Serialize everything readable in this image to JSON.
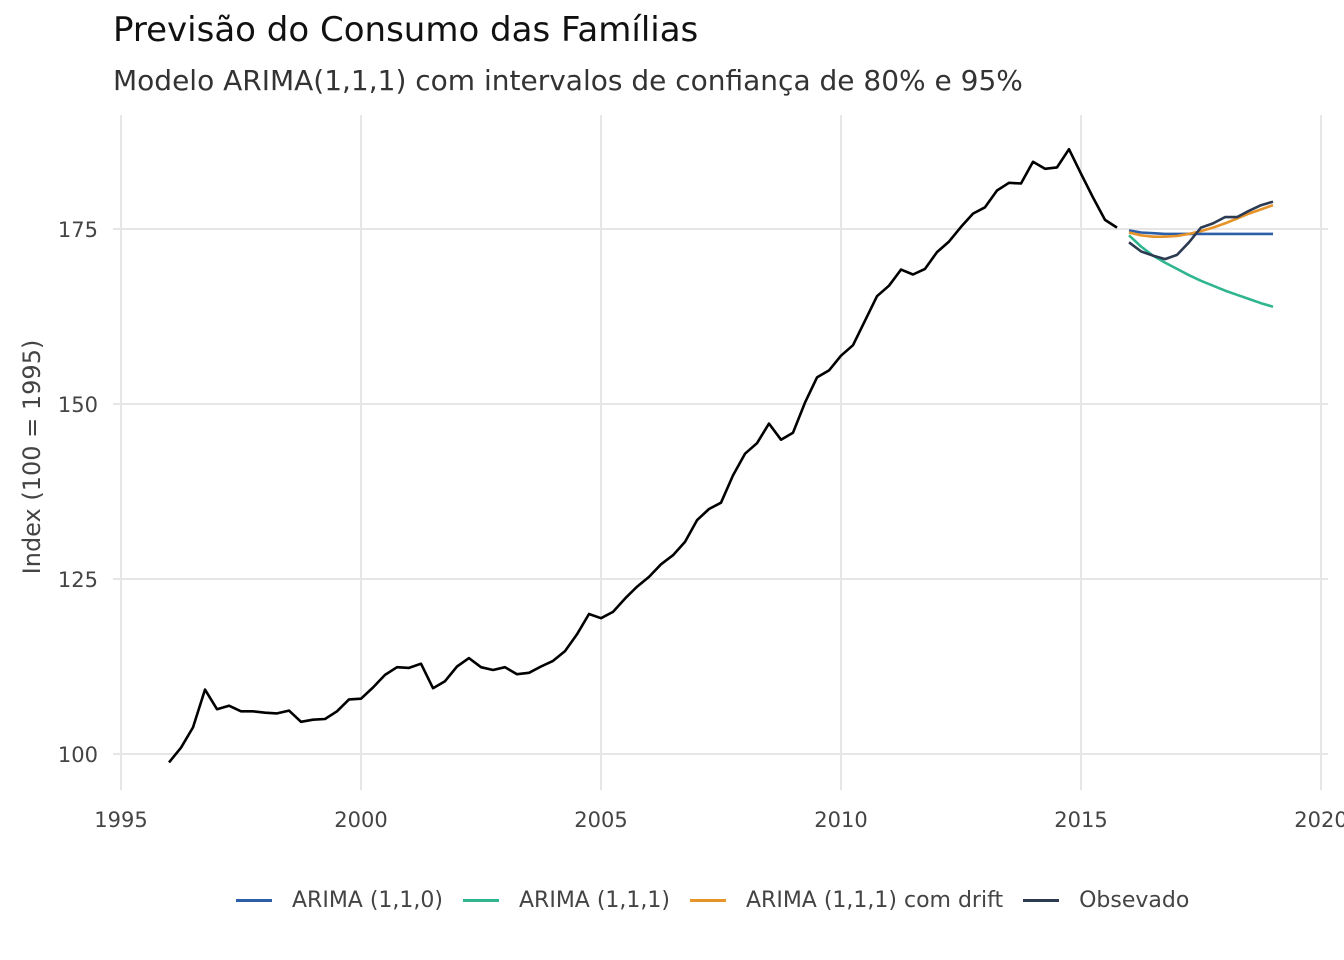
{
  "chart_data": {
    "type": "line",
    "title": "Previsão do Consumo das Famílias",
    "subtitle": "Modelo ARIMA(1,1,1) com intervalos de confiança de 80% e 95%",
    "xlabel": "",
    "ylabel": "Index (100 = 1995)",
    "xlim": [
      1995,
      2020
    ],
    "ylim": [
      95,
      190
    ],
    "x_ticks": [
      1995,
      2000,
      2005,
      2010,
      2015,
      2020
    ],
    "x_tick_labels": [
      "1995",
      "2000",
      "2005",
      "2010",
      "2015",
      "2020"
    ],
    "y_ticks": [
      100,
      125,
      150,
      175
    ],
    "y_tick_labels": [
      "100",
      "125",
      "150",
      "175"
    ],
    "grid": true,
    "legend_position": "bottom",
    "history": {
      "color": "#000000",
      "x": [
        1996.0,
        1996.25,
        1996.5,
        1996.75,
        1997.0,
        1997.25,
        1997.5,
        1997.75,
        1998.0,
        1998.25,
        1998.5,
        1998.75,
        1999.0,
        1999.25,
        1999.5,
        1999.75,
        2000.0,
        2000.25,
        2000.5,
        2000.75,
        2001.0,
        2001.25,
        2001.5,
        2001.75,
        2002.0,
        2002.25,
        2002.5,
        2002.75,
        2003.0,
        2003.25,
        2003.5,
        2003.75,
        2004.0,
        2004.25,
        2004.5,
        2004.75,
        2005.0,
        2005.25,
        2005.5,
        2005.75,
        2006.0,
        2006.25,
        2006.5,
        2006.75,
        2007.0,
        2007.25,
        2007.5,
        2007.75,
        2008.0,
        2008.25,
        2008.5,
        2008.75,
        2009.0,
        2009.25,
        2009.5,
        2009.75,
        2010.0,
        2010.25,
        2010.5,
        2010.75,
        2011.0,
        2011.25,
        2011.5,
        2011.75,
        2012.0,
        2012.25,
        2012.5,
        2012.75,
        2013.0,
        2013.25,
        2013.5,
        2013.75,
        2014.0,
        2014.25,
        2014.5,
        2014.75,
        2015.0,
        2015.25,
        2015.5,
        2015.75
      ],
      "y": [
        98.8,
        100.9,
        103.8,
        109.2,
        106.4,
        106.9,
        106.1,
        106.1,
        105.9,
        105.8,
        106.2,
        104.6,
        104.9,
        105.0,
        106.1,
        107.8,
        107.9,
        109.5,
        111.3,
        112.4,
        112.3,
        112.9,
        109.4,
        110.4,
        112.5,
        113.7,
        112.4,
        112.0,
        112.4,
        111.4,
        111.6,
        112.5,
        113.3,
        114.7,
        117.1,
        120.0,
        119.4,
        120.3,
        122.2,
        123.9,
        125.3,
        127.1,
        128.4,
        130.3,
        133.4,
        135.0,
        135.9,
        139.8,
        142.9,
        144.4,
        147.2,
        144.9,
        145.9,
        150.2,
        153.8,
        154.8,
        156.9,
        158.4,
        161.9,
        165.4,
        166.9,
        169.2,
        168.5,
        169.3,
        171.7,
        173.2,
        175.3,
        177.2,
        178.1,
        180.5,
        181.6,
        181.5,
        184.6,
        183.6,
        183.8,
        186.4,
        182.9,
        179.5,
        176.3,
        175.2
      ]
    },
    "series": [
      {
        "name": "ARIMA (1,1,0)",
        "color": "#2D5EA8",
        "x": [
          2016.0,
          2016.25,
          2016.5,
          2016.75,
          2017.0,
          2017.25,
          2017.5,
          2017.75,
          2018.0,
          2018.25,
          2018.5,
          2018.75,
          2019.0
        ],
        "y": [
          174.8,
          174.5,
          174.4,
          174.3,
          174.3,
          174.3,
          174.3,
          174.3,
          174.3,
          174.3,
          174.3,
          174.3,
          174.3
        ]
      },
      {
        "name": "ARIMA (1,1,1)",
        "color": "#2FB58F",
        "x": [
          2016.0,
          2016.25,
          2016.5,
          2016.75,
          2017.0,
          2017.25,
          2017.5,
          2017.75,
          2018.0,
          2018.25,
          2018.5,
          2018.75,
          2019.0
        ],
        "y": [
          174.1,
          172.5,
          171.2,
          170.2,
          169.3,
          168.4,
          167.6,
          166.9,
          166.2,
          165.6,
          165.0,
          164.4,
          163.9
        ]
      },
      {
        "name": "ARIMA (1,1,1) com drift",
        "color": "#E6932A",
        "x": [
          2016.0,
          2016.25,
          2016.5,
          2016.75,
          2017.0,
          2017.25,
          2017.5,
          2017.75,
          2018.0,
          2018.25,
          2018.5,
          2018.75,
          2019.0
        ],
        "y": [
          174.5,
          174.1,
          173.9,
          173.9,
          174.0,
          174.3,
          174.7,
          175.2,
          175.8,
          176.5,
          177.2,
          177.8,
          178.4
        ]
      },
      {
        "name": "Obsevado",
        "color": "#2C3A52",
        "x": [
          2016.0,
          2016.25,
          2016.5,
          2016.75,
          2017.0,
          2017.25,
          2017.5,
          2017.75,
          2018.0,
          2018.25,
          2018.5,
          2018.75,
          2019.0
        ],
        "y": [
          173.1,
          171.8,
          171.2,
          170.7,
          171.3,
          173.1,
          175.2,
          175.8,
          176.7,
          176.7,
          177.6,
          178.4,
          178.9
        ]
      }
    ]
  }
}
